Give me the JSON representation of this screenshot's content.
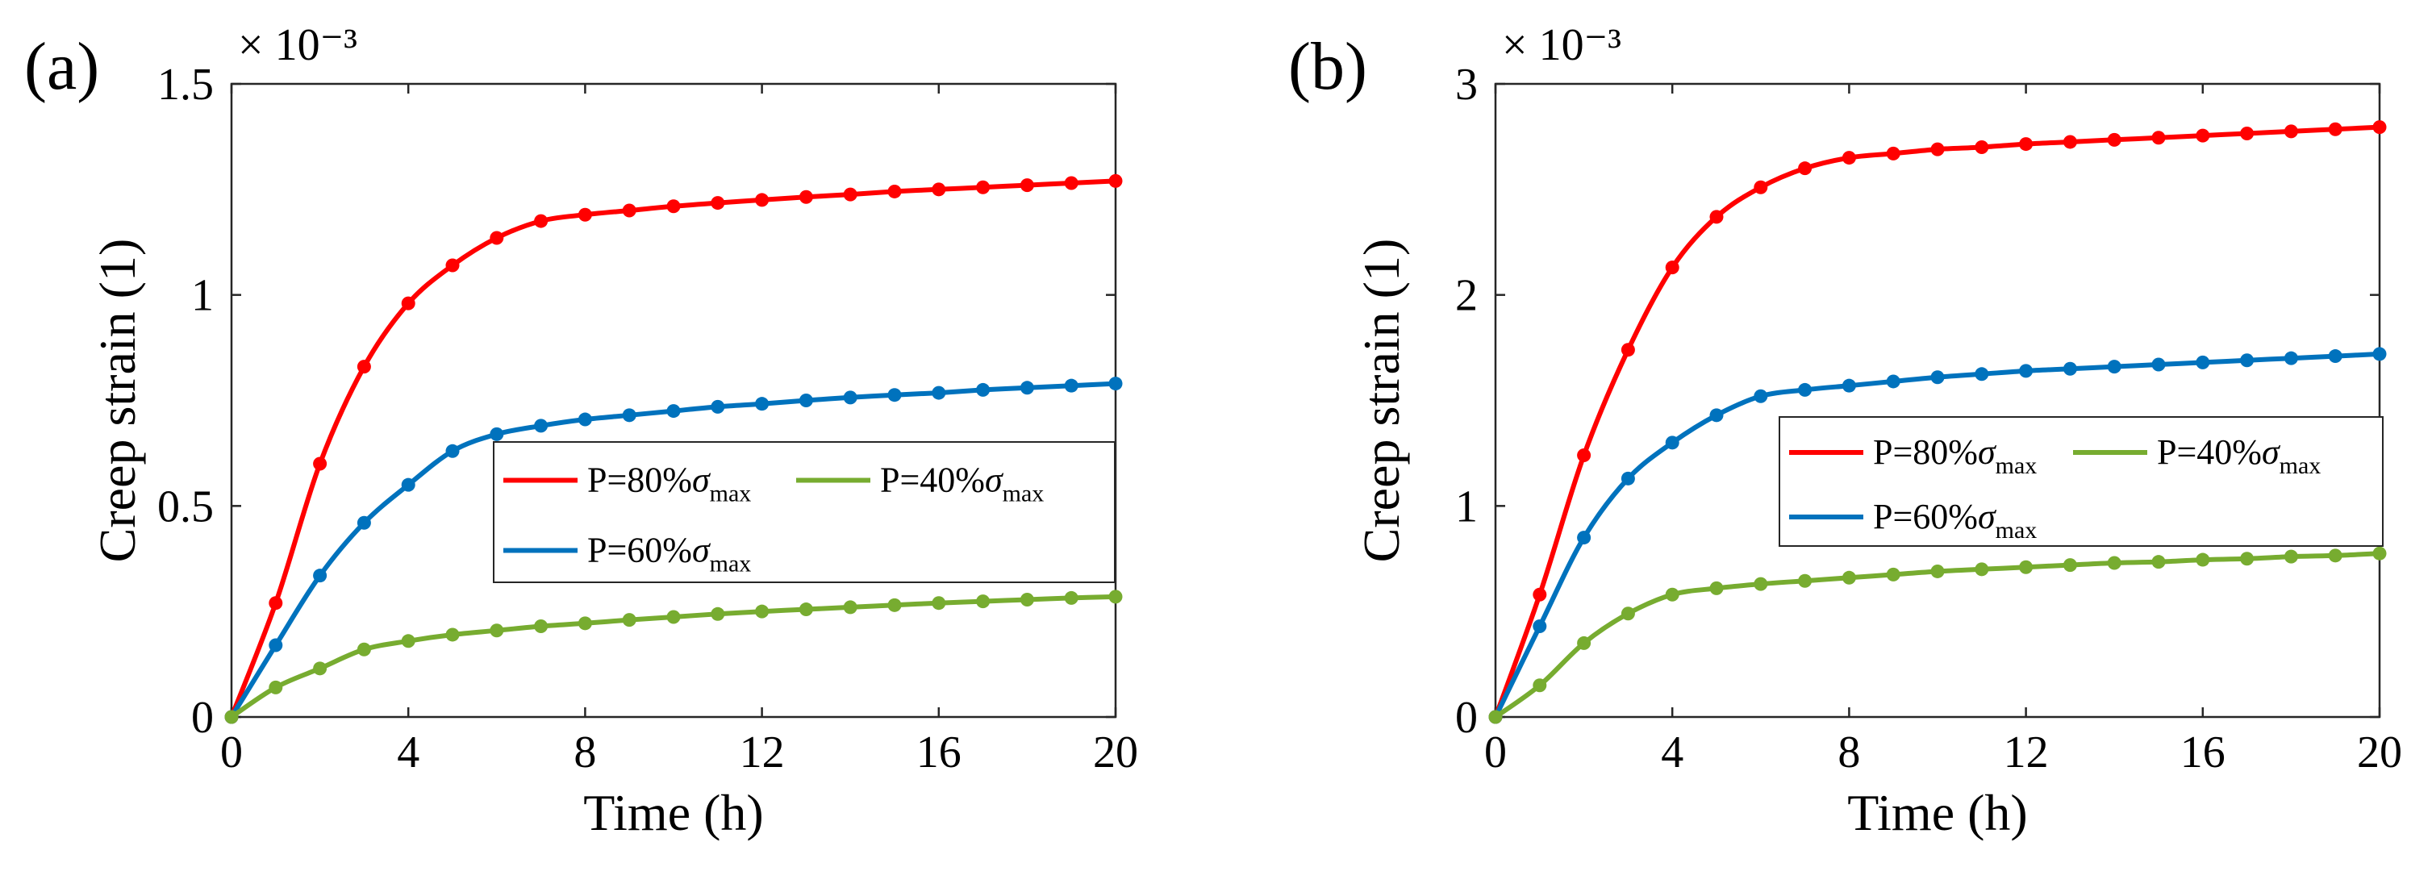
{
  "chart_data": [
    {
      "panel_label": "(a)",
      "type": "line",
      "xlabel": "Time (h)",
      "ylabel": "Creep strain (1)",
      "exponent_label": "× 10⁻³",
      "xlim": [
        0,
        20
      ],
      "ylim": [
        0,
        1.5
      ],
      "xticks": [
        0,
        4,
        8,
        12,
        16,
        20
      ],
      "yticks": [
        0,
        0.5,
        1,
        1.5
      ],
      "ytick_labels": [
        "0",
        "0.5",
        "1",
        "1.5"
      ],
      "grid": false,
      "legend": {
        "placement": "center-right",
        "entries": [
          {
            "prefix": "P=80%",
            "symbol": "σ",
            "sub": "max",
            "color": "#ff0000"
          },
          {
            "prefix": "P=40%",
            "symbol": "σ",
            "sub": "max",
            "color": "#77ac30"
          },
          {
            "prefix": "P=60%",
            "symbol": "σ",
            "sub": "max",
            "color": "#0072bd"
          }
        ]
      },
      "series": [
        {
          "name": "P=80%σmax",
          "color": "#ff0000",
          "x": [
            0,
            1,
            2,
            3,
            4,
            5,
            6,
            7,
            8,
            9,
            10,
            11,
            12,
            13,
            14,
            15,
            16,
            17,
            18,
            19,
            20
          ],
          "values": [
            0,
            0.27,
            0.6,
            0.83,
            0.98,
            1.07,
            1.135,
            1.175,
            1.19,
            1.2,
            1.21,
            1.218,
            1.225,
            1.232,
            1.238,
            1.245,
            1.25,
            1.255,
            1.26,
            1.265,
            1.27
          ]
        },
        {
          "name": "P=60%σmax",
          "color": "#0072bd",
          "x": [
            0,
            1,
            2,
            3,
            4,
            5,
            6,
            7,
            8,
            9,
            10,
            11,
            12,
            13,
            14,
            15,
            16,
            17,
            18,
            19,
            20
          ],
          "values": [
            0,
            0.17,
            0.335,
            0.46,
            0.55,
            0.63,
            0.67,
            0.69,
            0.705,
            0.715,
            0.725,
            0.735,
            0.742,
            0.75,
            0.757,
            0.763,
            0.768,
            0.775,
            0.78,
            0.785,
            0.79
          ]
        },
        {
          "name": "P=40%σmax",
          "color": "#77ac30",
          "x": [
            0,
            1,
            2,
            3,
            4,
            5,
            6,
            7,
            8,
            9,
            10,
            11,
            12,
            13,
            14,
            15,
            16,
            17,
            18,
            19,
            20
          ],
          "values": [
            0,
            0.07,
            0.115,
            0.16,
            0.18,
            0.195,
            0.205,
            0.215,
            0.222,
            0.23,
            0.237,
            0.244,
            0.25,
            0.255,
            0.26,
            0.265,
            0.27,
            0.274,
            0.278,
            0.282,
            0.285
          ]
        }
      ]
    },
    {
      "panel_label": "(b)",
      "type": "line",
      "xlabel": "Time (h)",
      "ylabel": "Creep strain (1)",
      "exponent_label": "× 10⁻³",
      "xlim": [
        0,
        20
      ],
      "ylim": [
        0,
        3
      ],
      "xticks": [
        0,
        4,
        8,
        12,
        16,
        20
      ],
      "yticks": [
        0,
        1,
        2,
        3
      ],
      "ytick_labels": [
        "0",
        "1",
        "2",
        "3"
      ],
      "grid": false,
      "legend": {
        "placement": "center-right",
        "entries": [
          {
            "prefix": "P=80%",
            "symbol": "σ",
            "sub": "max",
            "color": "#ff0000"
          },
          {
            "prefix": "P=40%",
            "symbol": "σ",
            "sub": "max",
            "color": "#77ac30"
          },
          {
            "prefix": "P=60%",
            "symbol": "σ",
            "sub": "max",
            "color": "#0072bd"
          }
        ]
      },
      "series": [
        {
          "name": "P=80%σmax",
          "color": "#ff0000",
          "x": [
            0,
            1,
            2,
            3,
            4,
            5,
            6,
            7,
            8,
            9,
            10,
            11,
            12,
            13,
            14,
            15,
            16,
            17,
            18,
            19,
            20
          ],
          "values": [
            0,
            0.58,
            1.24,
            1.74,
            2.13,
            2.37,
            2.51,
            2.6,
            2.65,
            2.67,
            2.69,
            2.7,
            2.715,
            2.725,
            2.735,
            2.745,
            2.755,
            2.765,
            2.775,
            2.785,
            2.795
          ]
        },
        {
          "name": "P=60%σmax",
          "color": "#0072bd",
          "x": [
            0,
            1,
            2,
            3,
            4,
            5,
            6,
            7,
            8,
            9,
            10,
            11,
            12,
            13,
            14,
            15,
            16,
            17,
            18,
            19,
            20
          ],
          "values": [
            0,
            0.43,
            0.85,
            1.13,
            1.3,
            1.43,
            1.52,
            1.55,
            1.57,
            1.59,
            1.61,
            1.625,
            1.64,
            1.65,
            1.66,
            1.67,
            1.68,
            1.69,
            1.7,
            1.71,
            1.72
          ]
        },
        {
          "name": "P=40%σmax",
          "color": "#77ac30",
          "x": [
            0,
            1,
            2,
            3,
            4,
            5,
            6,
            7,
            8,
            9,
            10,
            11,
            12,
            13,
            14,
            15,
            16,
            17,
            18,
            19,
            20
          ],
          "values": [
            0,
            0.15,
            0.35,
            0.49,
            0.58,
            0.61,
            0.63,
            0.645,
            0.66,
            0.675,
            0.69,
            0.7,
            0.71,
            0.72,
            0.73,
            0.735,
            0.745,
            0.75,
            0.76,
            0.765,
            0.775
          ]
        }
      ]
    }
  ]
}
